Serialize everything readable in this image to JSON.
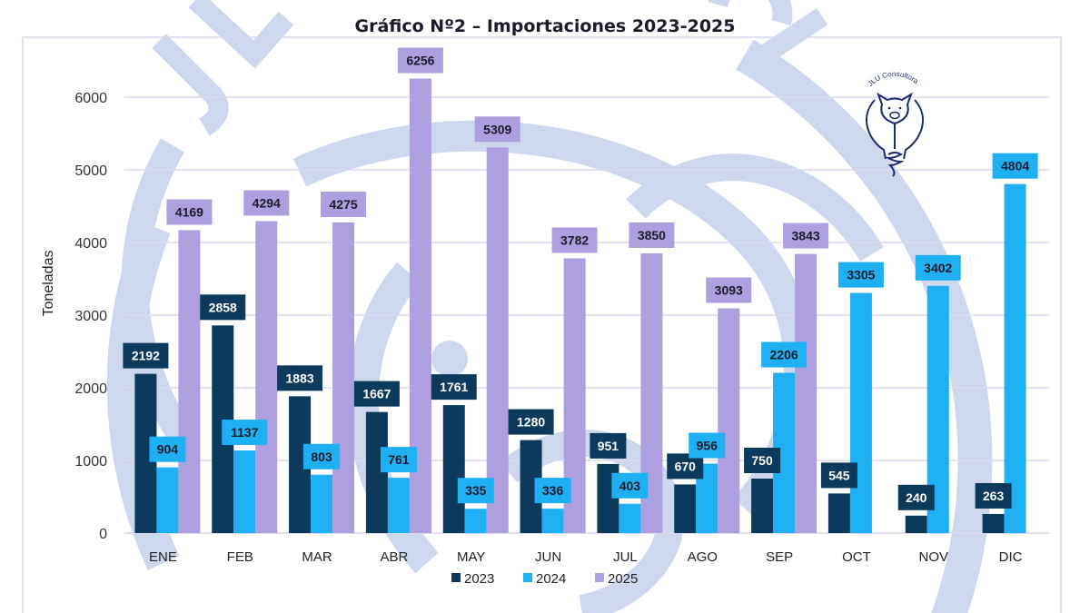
{
  "chart_data": {
    "type": "bar",
    "title": "Gráfico Nº2 – Importaciones 2023-2025",
    "xlabel": "",
    "ylabel": "Toneladas",
    "ylim": [
      0,
      6000
    ],
    "yticks": [
      0,
      1000,
      2000,
      3000,
      4000,
      5000,
      6000
    ],
    "grid": true,
    "legend_position": "bottom",
    "categories": [
      "ENE",
      "FEB",
      "MAR",
      "ABR",
      "MAY",
      "JUN",
      "JUL",
      "AGO",
      "SEP",
      "OCT",
      "NOV",
      "DIC"
    ],
    "series": [
      {
        "name": "2023",
        "color": "#0b3a5c",
        "label_color": "#ffffff",
        "values": [
          2192,
          2858,
          1883,
          1667,
          1761,
          1280,
          951,
          670,
          750,
          545,
          240,
          263
        ]
      },
      {
        "name": "2024",
        "color": "#1eb0f2",
        "label_color": "#1b1b2a",
        "values": [
          904,
          1137,
          803,
          761,
          335,
          336,
          403,
          956,
          2206,
          3305,
          3402,
          4804
        ]
      },
      {
        "name": "2025",
        "color": "#ad9fe0",
        "label_color": "#1b1b2a",
        "values": [
          4169,
          4294,
          4275,
          6256,
          5309,
          3782,
          3850,
          3093,
          3843,
          null,
          null,
          null
        ]
      }
    ]
  },
  "logo": {
    "text": "JLU Consultora",
    "icon": "lightbulb-pig-icon"
  },
  "watermark": {
    "text": "JLU Consultora",
    "color": "#cdd8ee"
  },
  "colors": {
    "grid": "#ddd9f2",
    "frame": "#d6d8ee"
  }
}
